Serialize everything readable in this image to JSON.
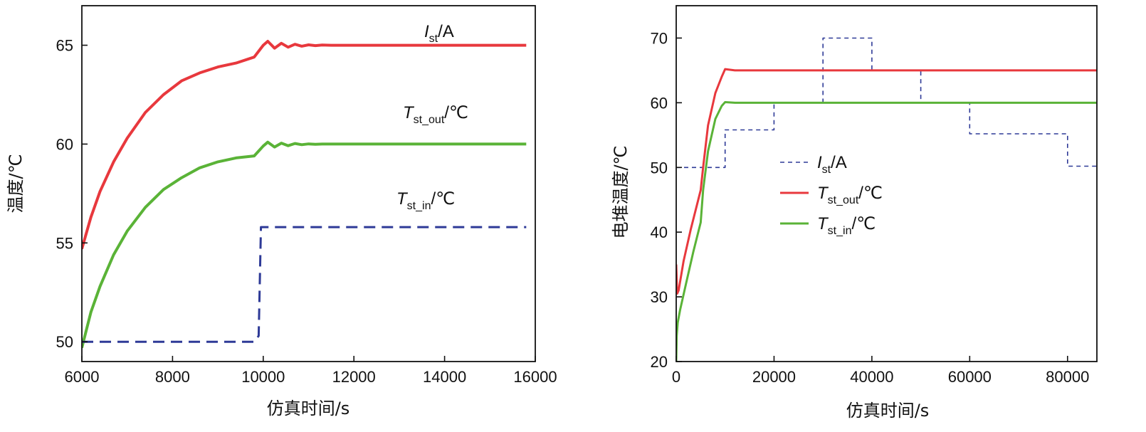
{
  "chart_data": [
    {
      "type": "line",
      "xlabel": "仿真时间/s",
      "ylabel": "温度/℃",
      "xlim": [
        6000,
        16000
      ],
      "ylim": [
        49,
        67
      ],
      "xticks": [
        6000,
        8000,
        10000,
        12000,
        14000,
        16000
      ],
      "yticks": [
        50,
        55,
        60,
        65
      ],
      "grid": false,
      "series": [
        {
          "name": "I_st/A",
          "label": {
            "main": "I",
            "sub": "st",
            "unit": "/A"
          },
          "color": "#e8383d",
          "style": "solid",
          "x": [
            6000,
            6200,
            6400,
            6700,
            7000,
            7400,
            7800,
            8200,
            8600,
            9000,
            9400,
            9800,
            10000,
            10100,
            10250,
            10400,
            10550,
            10700,
            10850,
            11000,
            11150,
            11300,
            11500,
            11700,
            12000,
            13000,
            14000,
            15000,
            15800
          ],
          "y": [
            54.7,
            56.3,
            57.6,
            59.1,
            60.3,
            61.6,
            62.5,
            63.2,
            63.6,
            63.9,
            64.1,
            64.4,
            65.0,
            65.2,
            64.85,
            65.1,
            64.9,
            65.05,
            64.95,
            65.02,
            64.98,
            65.01,
            65.0,
            65.0,
            65.0,
            65.0,
            65.0,
            65.0,
            65.0
          ]
        },
        {
          "name": "T_st_out/℃",
          "label": {
            "main": "T",
            "sub": "st_out",
            "unit": "/℃"
          },
          "color": "#5ab337",
          "style": "solid",
          "x": [
            6000,
            6200,
            6400,
            6700,
            7000,
            7400,
            7800,
            8200,
            8600,
            9000,
            9400,
            9800,
            10000,
            10100,
            10250,
            10400,
            10550,
            10700,
            10850,
            11000,
            11150,
            11300,
            11500,
            11700,
            12000,
            13000,
            14000,
            15000,
            15800
          ],
          "y": [
            49.7,
            51.5,
            52.8,
            54.4,
            55.6,
            56.8,
            57.7,
            58.3,
            58.8,
            59.1,
            59.3,
            59.4,
            59.9,
            60.1,
            59.85,
            60.05,
            59.92,
            60.03,
            59.97,
            60.01,
            59.99,
            60.0,
            60.0,
            60.0,
            60.0,
            60.0,
            60.0,
            60.0,
            60.0
          ]
        },
        {
          "name": "T_st_in/℃",
          "label": {
            "main": "T",
            "sub": "st_in",
            "unit": "/℃"
          },
          "color": "#2e3a97",
          "style": "dashed",
          "x": [
            6000,
            9800,
            9900,
            9950,
            15800
          ],
          "y": [
            50.0,
            50.0,
            50.3,
            55.8,
            55.8
          ]
        }
      ]
    },
    {
      "type": "line",
      "xlabel": "仿真时间/s",
      "ylabel": "电堆温度/℃",
      "xlim": [
        0,
        86000
      ],
      "ylim": [
        20,
        75
      ],
      "xticks": [
        0,
        20000,
        40000,
        60000,
        80000
      ],
      "yticks": [
        20,
        30,
        40,
        50,
        60,
        70
      ],
      "grid": false,
      "legend": "center-left",
      "series": [
        {
          "name": "I_st/A",
          "label": {
            "main": "I",
            "sub": "st",
            "unit": "/A"
          },
          "color": "#2e3a97",
          "style": "dashed",
          "x": [
            0,
            10000,
            10000,
            20000,
            20000,
            30000,
            30000,
            40000,
            40000,
            50000,
            50000,
            60000,
            60000,
            80000,
            80000,
            86000
          ],
          "y": [
            50,
            50,
            55.8,
            55.8,
            60,
            60,
            70,
            70,
            65,
            65,
            60,
            60,
            55.2,
            55.2,
            50.2,
            50.2
          ]
        },
        {
          "name": "T_st_out/℃",
          "label": {
            "main": "T",
            "sub": "st_out",
            "unit": "/℃"
          },
          "color": "#e8383d",
          "style": "solid",
          "x": [
            0,
            200,
            500,
            1500,
            3000,
            5000,
            5500,
            6500,
            8000,
            9300,
            10000,
            12000,
            20000,
            30000,
            40000,
            50000,
            60000,
            70000,
            80000,
            86000
          ],
          "y": [
            35,
            30.5,
            31,
            35.5,
            40.5,
            46.5,
            50,
            56.5,
            61.5,
            64.0,
            65.2,
            65.0,
            65.0,
            65.0,
            65.0,
            65.0,
            65.0,
            65.0,
            65.0,
            65.0
          ]
        },
        {
          "name": "T_st_in/℃",
          "label": {
            "main": "T",
            "sub": "st_in",
            "unit": "/℃"
          },
          "color": "#5ab337",
          "style": "solid",
          "x": [
            0,
            100,
            300,
            800,
            2000,
            3500,
            5000,
            5500,
            6500,
            8000,
            9300,
            10000,
            12000,
            20000,
            30000,
            40000,
            50000,
            60000,
            70000,
            80000,
            86000
          ],
          "y": [
            20,
            24,
            26,
            28,
            32,
            37,
            41.5,
            46.5,
            52.5,
            57.5,
            59.5,
            60.1,
            60.0,
            60.0,
            60.0,
            60.0,
            60.0,
            60.0,
            60.0,
            60.0,
            60.0
          ]
        }
      ]
    }
  ]
}
